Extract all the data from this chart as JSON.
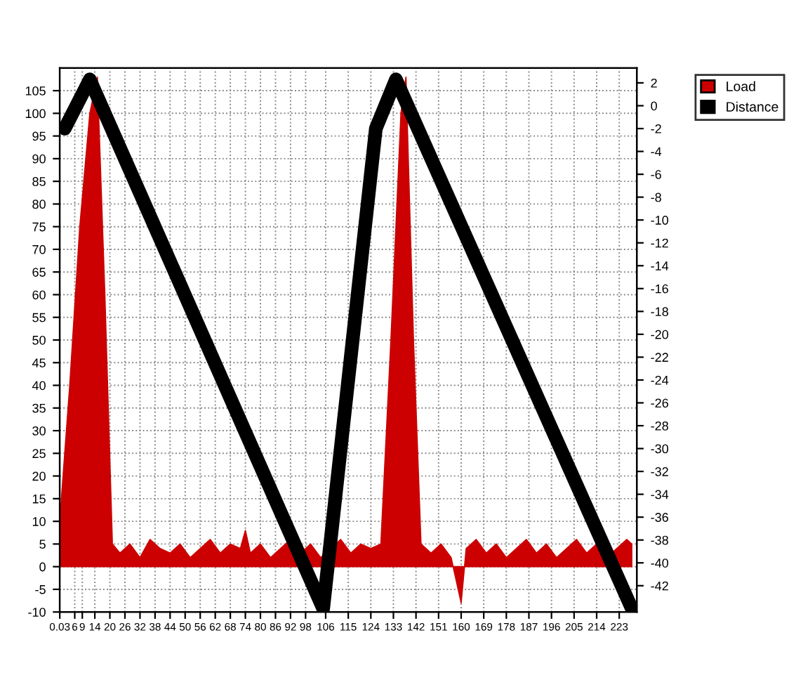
{
  "chart_data": {
    "type": "area",
    "xlim": [
      0,
      230
    ],
    "ylim": [
      -10,
      110
    ],
    "y2lim": [
      -44.3,
      3.3
    ],
    "xticks": [
      {
        "value": 0.03,
        "label": "0.03"
      },
      6,
      9,
      14,
      20,
      26,
      32,
      38,
      44,
      50,
      56,
      62,
      68,
      74,
      80,
      86,
      92,
      98,
      106,
      115,
      124,
      133,
      142,
      151,
      160,
      169,
      178,
      187,
      196,
      205,
      214,
      223
    ],
    "yticks": [
      -10,
      -5,
      0,
      5,
      10,
      15,
      20,
      25,
      30,
      35,
      40,
      45,
      50,
      55,
      60,
      65,
      70,
      75,
      80,
      85,
      90,
      95,
      100,
      105
    ],
    "y2ticks": [
      -42,
      -40,
      -38,
      -36,
      -34,
      -32,
      -30,
      -28,
      -26,
      -24,
      -22,
      -20,
      -18,
      -16,
      -14,
      -12,
      -10,
      -8,
      -6,
      -4,
      -2,
      0,
      2
    ],
    "grid": true,
    "legend": "top right",
    "series": [
      {
        "name": "Load",
        "color": "#cc0000",
        "x": [
          0,
          4,
          8,
          12,
          15,
          18,
          21,
          24,
          28,
          32,
          36,
          40,
          44,
          48,
          52,
          56,
          60,
          64,
          68,
          72,
          74,
          76,
          80,
          84,
          88,
          92,
          96,
          100,
          104,
          108,
          112,
          116,
          120,
          124,
          128,
          132,
          136,
          138,
          141,
          144,
          148,
          152,
          156,
          160,
          162,
          166,
          170,
          174,
          178,
          182,
          186,
          190,
          194,
          198,
          202,
          206,
          210,
          214,
          218,
          222,
          226,
          228
        ],
        "values": [
          10,
          40,
          75,
          100,
          108,
          60,
          5,
          3,
          5,
          2,
          6,
          4,
          3,
          5,
          2,
          4,
          6,
          3,
          5,
          4,
          8,
          3,
          5,
          2,
          4,
          6,
          3,
          5,
          2,
          4,
          6,
          3,
          5,
          4,
          5,
          50,
          100,
          108,
          50,
          5,
          3,
          5,
          2,
          -8,
          4,
          6,
          3,
          5,
          2,
          4,
          6,
          3,
          5,
          2,
          4,
          6,
          3,
          5,
          2,
          4,
          6,
          5
        ]
      },
      {
        "name": "Distance",
        "type": "line",
        "axis": "y2",
        "color": "#000000",
        "x": [
          2,
          12,
          105,
          126,
          134,
          228
        ],
        "values": [
          -2,
          2.3,
          -44,
          -2,
          2.3,
          -44
        ]
      }
    ]
  }
}
